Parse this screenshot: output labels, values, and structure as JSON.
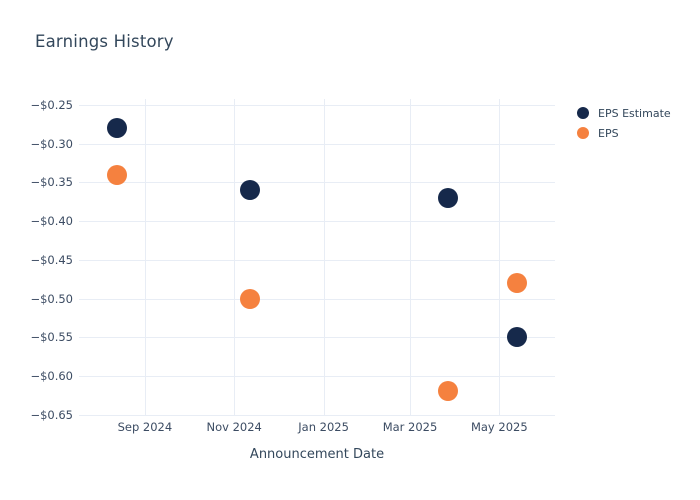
{
  "chart": {
    "title": "Earnings History",
    "x_axis_title": "Announcement Date"
  },
  "colors": {
    "background": "#ffffff",
    "grid": "#e8edf5",
    "title_text": "#33475b",
    "tick_text": "#3c4c63",
    "eps_estimate": "#16294b",
    "eps": "#f5813f"
  },
  "chart_data": {
    "type": "scatter",
    "title": "Earnings History",
    "xlabel": "Announcement Date",
    "ylabel": "",
    "grid": true,
    "legend_position": "right-top",
    "marker_size_px": 20,
    "xlim": [
      "2024-07-18",
      "2025-06-08"
    ],
    "ylim": [
      -0.6505,
      -0.2422
    ],
    "x_ticks": [
      {
        "label": "Sep 2024",
        "date": "2024-09-01"
      },
      {
        "label": "Nov 2024",
        "date": "2024-11-01"
      },
      {
        "label": "Jan 2025",
        "date": "2025-01-01"
      },
      {
        "label": "Mar 2025",
        "date": "2025-03-01"
      },
      {
        "label": "May 2025",
        "date": "2025-05-01"
      }
    ],
    "y_ticks": [
      {
        "label": "−$0.25",
        "value": -0.25
      },
      {
        "label": "−$0.30",
        "value": -0.3
      },
      {
        "label": "−$0.35",
        "value": -0.35
      },
      {
        "label": "−$0.40",
        "value": -0.4
      },
      {
        "label": "−$0.45",
        "value": -0.45
      },
      {
        "label": "−$0.50",
        "value": -0.5
      },
      {
        "label": "−$0.55",
        "value": -0.55
      },
      {
        "label": "−$0.60",
        "value": -0.6
      },
      {
        "label": "−$0.65",
        "value": -0.65
      }
    ],
    "series": [
      {
        "name": "EPS Estimate",
        "color": "#16294b",
        "points": [
          {
            "date": "2024-08-13",
            "value": -0.28
          },
          {
            "date": "2024-11-12",
            "value": -0.36
          },
          {
            "date": "2025-03-27",
            "value": -0.37
          },
          {
            "date": "2025-05-13",
            "value": -0.55
          }
        ]
      },
      {
        "name": "EPS",
        "color": "#f5813f",
        "points": [
          {
            "date": "2024-08-13",
            "value": -0.34
          },
          {
            "date": "2024-11-12",
            "value": -0.5
          },
          {
            "date": "2025-03-27",
            "value": -0.62
          },
          {
            "date": "2025-05-13",
            "value": -0.48
          }
        ]
      }
    ]
  }
}
